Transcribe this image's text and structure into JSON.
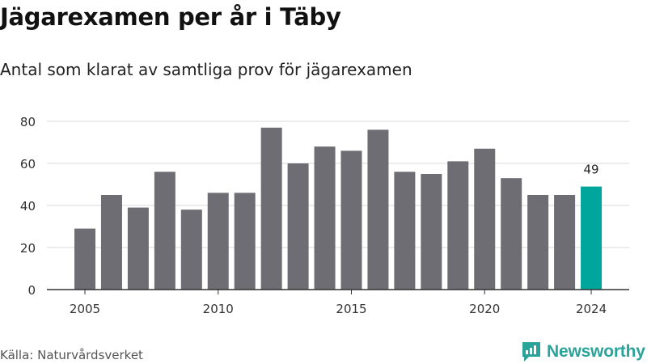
{
  "title": "Jägarexamen per år i Täby",
  "subtitle": "Antal som klarat av samtliga prov för jägarexamen",
  "source": "Källa: Naturvårdsverket",
  "brand": {
    "name": "Newsworthy",
    "icon": "newsworthy-logo-icon"
  },
  "colors": {
    "bar": "#6e6d73",
    "highlight": "#00a69c",
    "grid": "#d9d9d9",
    "axis": "#333333",
    "brand": "#2aa39a"
  },
  "chart_data": {
    "type": "bar",
    "title": "Jägarexamen per år i Täby",
    "subtitle": "Antal som klarat av samtliga prov för jägarexamen",
    "categories": [
      2005,
      2006,
      2007,
      2008,
      2009,
      2010,
      2011,
      2012,
      2013,
      2014,
      2015,
      2016,
      2017,
      2018,
      2019,
      2020,
      2021,
      2022,
      2023,
      2024
    ],
    "values": [
      29,
      45,
      39,
      56,
      38,
      46,
      46,
      77,
      60,
      68,
      66,
      76,
      56,
      55,
      61,
      67,
      53,
      45,
      45,
      49
    ],
    "highlight": {
      "category": 2024,
      "label": "49"
    },
    "x_tick_labels": [
      "2005",
      "2010",
      "2015",
      "2020",
      "2024"
    ],
    "y_ticks": [
      0,
      20,
      40,
      60,
      80
    ],
    "ylim": [
      0,
      80
    ],
    "grid": true,
    "legend": "none",
    "xlabel": "",
    "ylabel": ""
  }
}
